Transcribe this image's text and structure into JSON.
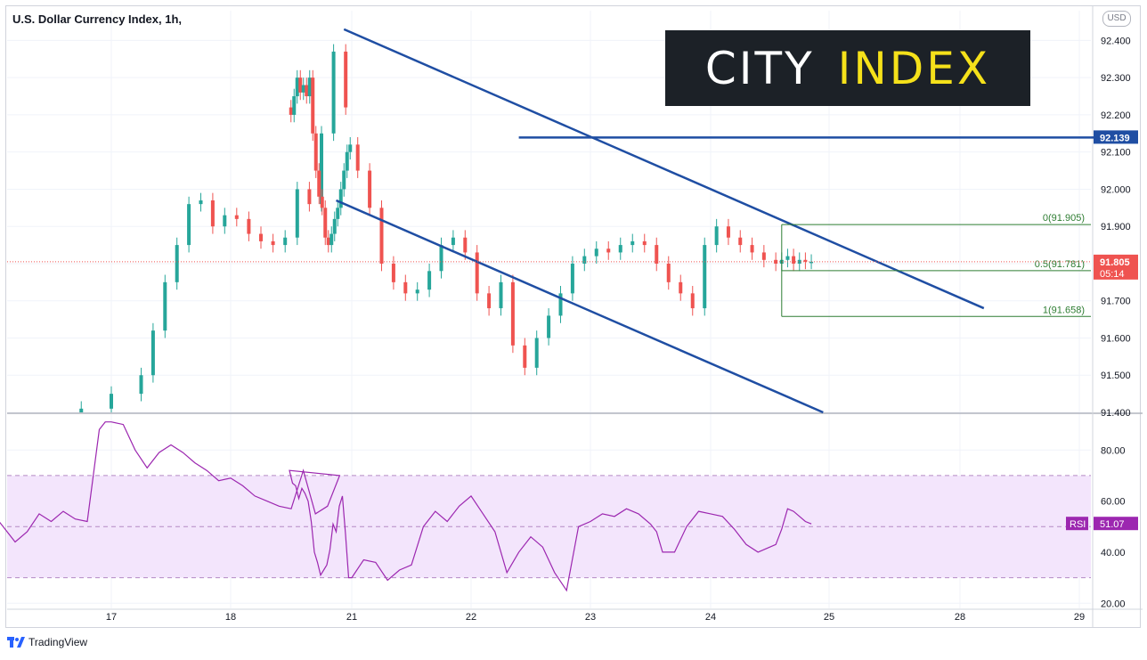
{
  "header": {
    "title": "U.S. Dollar Currency Index, 1h,",
    "currency_button": "USD"
  },
  "logo": {
    "word1": "CITY",
    "word2": "INDEX"
  },
  "footer": {
    "brand": "TradingView"
  },
  "colors": {
    "up": "#26a69a",
    "down": "#ef5350",
    "trendline": "#1f4ea3",
    "fib": "#2e7d32",
    "rsi": "#9c27b0",
    "rsi_band": "#f3e5fc",
    "price_tag": "#ef5350"
  },
  "chart_data": [
    {
      "type": "candlestick",
      "title": "U.S. Dollar Currency Index, 1h,",
      "ylim": [
        91.4,
        92.48
      ],
      "y_ticks": [
        "92.400",
        "92.300",
        "92.200",
        "92.100",
        "92.000",
        "91.900",
        "91.800",
        "91.700",
        "91.600",
        "91.500",
        "91.400"
      ],
      "x_ticks": [
        "17",
        "18",
        "21",
        "22",
        "23",
        "24",
        "25",
        "28",
        "29"
      ],
      "last_price": "91.805",
      "countdown": "05:14",
      "resistance_level": "92.139",
      "fibonacci": [
        {
          "label": "0(91.905)",
          "value": 91.905
        },
        {
          "label": "0.5(91.781)",
          "value": 91.781
        },
        {
          "label": "1(91.658)",
          "value": 91.658
        }
      ],
      "trendlines": [
        {
          "name": "upper channel",
          "from": [
            20.75,
            92.43
          ],
          "to": [
            28.2,
            91.68
          ]
        },
        {
          "name": "lower channel",
          "from": [
            20.5,
            91.97
          ],
          "to": [
            24.95,
            91.4
          ]
        },
        {
          "name": "horizontal resistance",
          "from": [
            22.4,
            92.139
          ],
          "to": [
            29.2,
            92.139
          ]
        }
      ],
      "series": [
        {
          "name": "close",
          "x": [
            16.75,
            17.0,
            17.25,
            17.35,
            17.45,
            17.55,
            17.65,
            17.75,
            17.85,
            17.95,
            18.05,
            18.15,
            18.25,
            18.35,
            18.45,
            18.55,
            18.65,
            18.75,
            18.85,
            18.95,
            19.05,
            19.15,
            19.25,
            19.35,
            19.45,
            19.55,
            19.65,
            19.75,
            19.85,
            19.95,
            20.05,
            20.15,
            20.25,
            20.35,
            20.45,
            20.55,
            20.65,
            20.75,
            20.85,
            20.95,
            21.05,
            21.15,
            21.25,
            21.35,
            21.45,
            21.55,
            21.65,
            21.75,
            21.85,
            21.95,
            22.05,
            22.15,
            22.25,
            22.35,
            22.45,
            22.55,
            22.65,
            22.75,
            22.85,
            22.95,
            23.05,
            23.15,
            23.25,
            23.35,
            23.45,
            23.55,
            23.65,
            23.75,
            23.85,
            23.95,
            24.05,
            24.15,
            24.25,
            24.35,
            24.45,
            24.55,
            24.6,
            24.65,
            24.7,
            24.75,
            24.8,
            24.85
          ],
          "values": [
            91.41,
            91.45,
            91.5,
            91.62,
            91.75,
            91.85,
            91.96,
            91.97,
            91.9,
            91.93,
            91.92,
            91.88,
            91.86,
            91.85,
            91.87,
            92.0,
            91.96,
            92.15,
            92.37,
            92.22,
            92.2,
            92.25,
            92.3,
            92.26,
            92.28,
            92.25,
            92.3,
            92.15,
            92.05,
            91.98,
            91.95,
            91.87,
            91.85,
            91.88,
            91.92,
            91.95,
            92.0,
            92.05,
            92.1,
            92.12,
            92.05,
            91.95,
            91.8,
            91.75,
            91.72,
            91.73,
            91.78,
            91.85,
            91.87,
            91.83,
            91.72,
            91.68,
            91.75,
            91.58,
            91.52,
            91.6,
            91.66,
            91.72,
            91.8,
            91.82,
            91.84,
            91.83,
            91.85,
            91.86,
            91.85,
            91.8,
            91.75,
            91.72,
            91.68,
            91.85,
            91.9,
            91.87,
            91.85,
            91.83,
            91.81,
            91.8,
            91.81,
            91.82,
            91.8,
            91.81,
            91.805,
            91.805
          ]
        }
      ]
    },
    {
      "type": "line",
      "name": "RSI",
      "ylim": [
        18,
        93
      ],
      "y_ticks": [
        "80.00",
        "60.00",
        "40.00",
        "20.00"
      ],
      "band": [
        30,
        70
      ],
      "midline": 50,
      "last_value": "51.07",
      "series": [
        {
          "name": "RSI",
          "x": [
            16.0,
            16.1,
            16.2,
            16.3,
            16.4,
            16.5,
            16.6,
            16.7,
            16.8,
            16.9,
            16.95,
            17.0,
            17.1,
            17.2,
            17.3,
            17.4,
            17.5,
            17.6,
            17.7,
            17.8,
            17.9,
            18.0,
            18.1,
            18.2,
            18.3,
            18.4,
            18.5,
            18.6,
            18.7,
            18.8,
            18.9,
            19.0,
            19.1,
            19.2,
            19.3,
            19.4,
            19.5,
            19.6,
            19.7,
            19.8,
            19.9,
            20.0,
            20.1,
            20.2,
            20.3,
            20.4,
            20.5,
            20.6,
            20.7,
            20.8,
            20.9,
            21.0,
            21.1,
            21.2,
            21.3,
            21.4,
            21.5,
            21.6,
            21.7,
            21.8,
            21.9,
            22.0,
            22.1,
            22.2,
            22.3,
            22.4,
            22.5,
            22.6,
            22.7,
            22.8,
            22.9,
            23.0,
            23.1,
            23.2,
            23.3,
            23.4,
            23.5,
            23.55,
            23.6,
            23.7,
            23.8,
            23.9,
            24.0,
            24.1,
            24.2,
            24.3,
            24.4,
            24.5,
            24.55,
            24.6,
            24.65,
            24.7,
            24.8,
            24.85
          ],
          "values": [
            56,
            50,
            44,
            48,
            55,
            52,
            56,
            53,
            52,
            88,
            91,
            91,
            90,
            80,
            73,
            79,
            82,
            79,
            75,
            72,
            68,
            69,
            66,
            62,
            60,
            58,
            57,
            72,
            55,
            58,
            70,
            72,
            67,
            66,
            61,
            65,
            63,
            60,
            52,
            40,
            36,
            31,
            33,
            35,
            41,
            51,
            48,
            58,
            62,
            47,
            30,
            30,
            37,
            36,
            29,
            33,
            35,
            50,
            56,
            52,
            58,
            62,
            55,
            48,
            32,
            40,
            46,
            42,
            32,
            25,
            50,
            52,
            55,
            54,
            57,
            55,
            51,
            48,
            40,
            40,
            50,
            56,
            55,
            54,
            49,
            43,
            40,
            42,
            43,
            49,
            57,
            56,
            52,
            51.07
          ]
        }
      ]
    }
  ]
}
